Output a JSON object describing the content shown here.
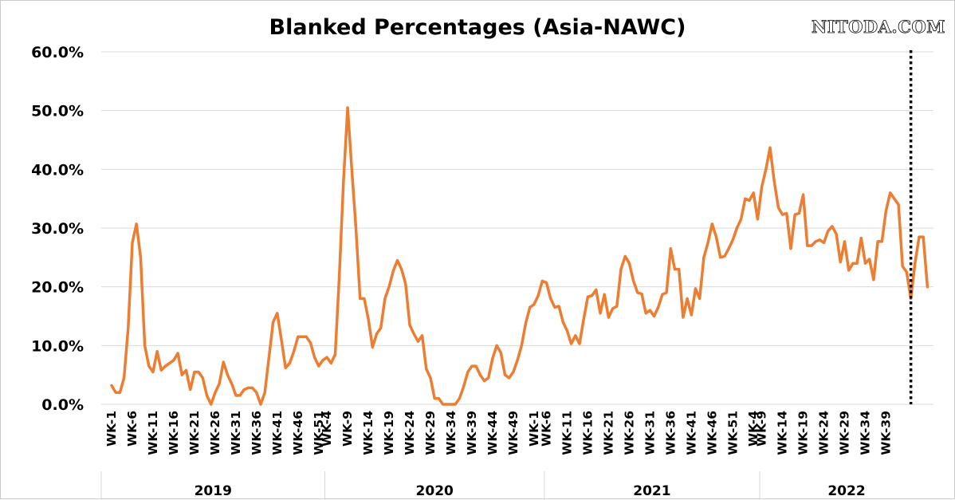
{
  "watermark": "NITODA.COM",
  "chart_data": {
    "type": "line",
    "title": "Blanked Percentages (Asia-NAWC)",
    "xlabel": "",
    "ylabel": "",
    "ylim": [
      0,
      60
    ],
    "yticks": [
      "0.0%",
      "10.0%",
      "20.0%",
      "30.0%",
      "40.0%",
      "50.0%",
      "60.0%"
    ],
    "grid": true,
    "legend": "none",
    "line_color": "#ED7D31",
    "marker_color": "#000000",
    "years": [
      {
        "label": "2019",
        "weeks": 52
      },
      {
        "label": "2020",
        "weeks": 53
      },
      {
        "label": "2021",
        "weeks": 52
      },
      {
        "label": "2022",
        "weeks": 42
      }
    ],
    "x_tick_labels": [
      "WK-1",
      "WK-6",
      "WK-11",
      "WK-16",
      "WK-21",
      "WK-26",
      "WK-31",
      "WK-36",
      "WK-41",
      "WK-46",
      "WK-51",
      "WK-4",
      "WK-9",
      "WK-14",
      "WK-19",
      "WK-24",
      "WK-29",
      "WK-34",
      "WK-39",
      "WK-44",
      "WK-49",
      "WK-1",
      "WK-6",
      "WK-11",
      "WK-16",
      "WK-21",
      "WK-26",
      "WK-31",
      "WK-36",
      "WK-41",
      "WK-46",
      "WK-51",
      "WK-4",
      "WK-9",
      "WK-14",
      "WK-19",
      "WK-24",
      "WK-29",
      "WK-34",
      "WK-39"
    ],
    "vertical_marker": {
      "year": "2022",
      "week": 37,
      "style": "dotted"
    },
    "series": [
      {
        "values": [
          3.2,
          2.0,
          2.0,
          4.5,
          13.0,
          27.5,
          30.7,
          25.0,
          10.0,
          6.5,
          5.5,
          9.0,
          5.8,
          6.5,
          7.0,
          7.5,
          8.7,
          5.0,
          5.8,
          2.5,
          5.5,
          5.5,
          4.5,
          1.5,
          0.0,
          2.0,
          3.5,
          7.2,
          5.0,
          3.5,
          1.5,
          1.5,
          2.5,
          2.8,
          2.8,
          2.0,
          0.0,
          2.0,
          8.0,
          14.0,
          15.5,
          11.0,
          6.2,
          7.0,
          9.0,
          11.5,
          11.5,
          11.5,
          10.5,
          8.0,
          6.5,
          7.5,
          8.0,
          7.0,
          8.5,
          22.0,
          38.0,
          50.5,
          40.0,
          30.0,
          18.0,
          18.0,
          14.5,
          9.7,
          12.0,
          13.0,
          18.0,
          20.0,
          22.7,
          24.5,
          23.0,
          20.5,
          13.5,
          12.0,
          10.7,
          11.7,
          6.0,
          4.5,
          1.0,
          1.0,
          0.0,
          0.0,
          0.0,
          0.0,
          1.0,
          3.0,
          5.5,
          6.5,
          6.5,
          5.0,
          4.0,
          4.5,
          7.8,
          10.0,
          8.8,
          5.0,
          4.5,
          5.5,
          7.5,
          10.0,
          13.8,
          16.5,
          17.0,
          18.5,
          21.0,
          20.7,
          18.0,
          16.5,
          16.7,
          14.0,
          12.5,
          10.3,
          11.7,
          10.3,
          14.5,
          18.3,
          18.5,
          19.5,
          15.5,
          18.7,
          14.8,
          16.3,
          16.7,
          23.0,
          25.2,
          24.0,
          21.0,
          19.0,
          18.8,
          15.5,
          16.0,
          15.0,
          16.5,
          18.7,
          19.0,
          26.5,
          23.0,
          23.0,
          14.8,
          18.0,
          15.2,
          19.7,
          18.0,
          25.0,
          27.5,
          30.7,
          28.5,
          25.0,
          25.2,
          26.5,
          28.0,
          30.0,
          31.5,
          35.0,
          34.7,
          36.0,
          31.5,
          37.0,
          40.0,
          43.7,
          38.0,
          33.5,
          32.3,
          32.5,
          26.5,
          32.3,
          32.5,
          35.7,
          27.0,
          27.0,
          27.7,
          28.0,
          27.5,
          29.5,
          30.3,
          29.0,
          24.2,
          27.7,
          22.8,
          24.0,
          24.0,
          28.3,
          24.0,
          24.7,
          21.2,
          27.7,
          27.7,
          33.0,
          36.0,
          35.0,
          34.0,
          23.5,
          22.5,
          18.0,
          24.0,
          28.5,
          28.5,
          20.0
        ]
      }
    ]
  }
}
